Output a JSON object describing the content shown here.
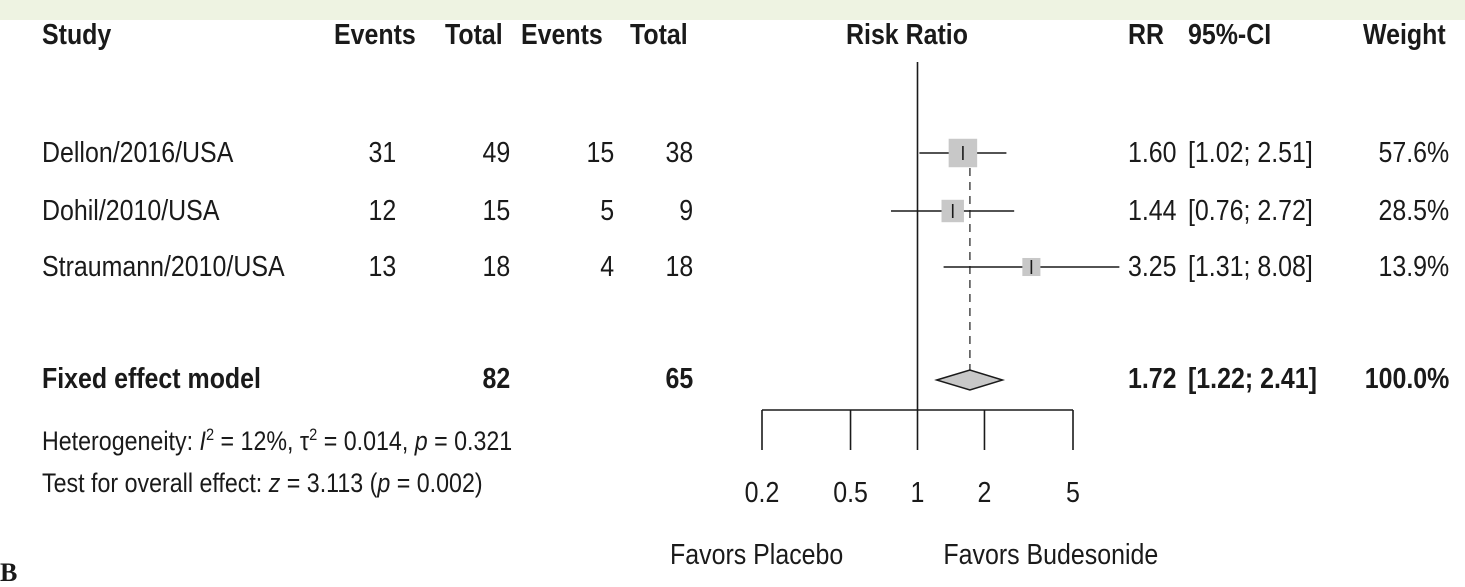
{
  "chart_data": {
    "type": "forest",
    "x_scale": "log",
    "xlim": [
      0.2,
      5
    ],
    "reference_line": 1,
    "x_ticks": [
      "0.2",
      "0.5",
      "1",
      "2",
      "5"
    ],
    "x_tick_values": [
      0.2,
      0.5,
      1,
      2,
      5
    ],
    "favors_left": "Favors Placebo",
    "favors_right": "Favors Budesonide",
    "headers": {
      "study": "Study",
      "events1": "Events",
      "total1": "Total",
      "events2": "Events",
      "total2": "Total",
      "plot": "Risk Ratio",
      "rr": "RR",
      "ci": "95%-CI",
      "weight": "Weight"
    },
    "studies": [
      {
        "study": "Dellon/2016/USA",
        "events1": "31",
        "total1": "49",
        "events2": "15",
        "total2": "38",
        "rr_text": "1.60",
        "ci_text": "[1.02; 2.51]",
        "weight_text": "57.6%",
        "rr": 1.6,
        "lower": 1.02,
        "upper": 2.51,
        "weight": 57.6
      },
      {
        "study": "Dohil/2010/USA",
        "events1": "12",
        "total1": "15",
        "events2": "5",
        "total2": "9",
        "rr_text": "1.44",
        "ci_text": "[0.76; 2.72]",
        "weight_text": "28.5%",
        "rr": 1.44,
        "lower": 0.76,
        "upper": 2.72,
        "weight": 28.5
      },
      {
        "study": "Straumann/2010/USA",
        "events1": "13",
        "total1": "18",
        "events2": "4",
        "total2": "18",
        "rr_text": "3.25",
        "ci_text": "[1.31; 8.08]",
        "weight_text": "13.9%",
        "rr": 3.25,
        "lower": 1.31,
        "upper": 8.08,
        "weight": 13.9
      }
    ],
    "pooled": {
      "label": "Fixed effect model",
      "total1": "82",
      "total2": "65",
      "rr_text": "1.72",
      "ci_text": "[1.22; 2.41]",
      "weight_text": "100.0%",
      "rr": 1.72,
      "lower": 1.22,
      "upper": 2.41
    },
    "heterogeneity": {
      "prefix": "Heterogeneity: ",
      "i2_symbol": "I",
      "i2_value": " = 12%, ",
      "tau_symbol": "τ",
      "tau_value": " = 0.014, ",
      "p_symbol": "p",
      "p_value": " = 0.321"
    },
    "overall_effect": {
      "prefix": "Test for overall effect: ",
      "z_symbol": "z",
      "z_value": " = 3.113 (",
      "p_symbol": "p",
      "p_value": " = 0.002)"
    }
  },
  "corner_label": "B",
  "colors": {
    "box": "#c8c8c8",
    "line": "#1a1a1a",
    "dashed": "#555555",
    "topbar": "#eef3e2"
  }
}
